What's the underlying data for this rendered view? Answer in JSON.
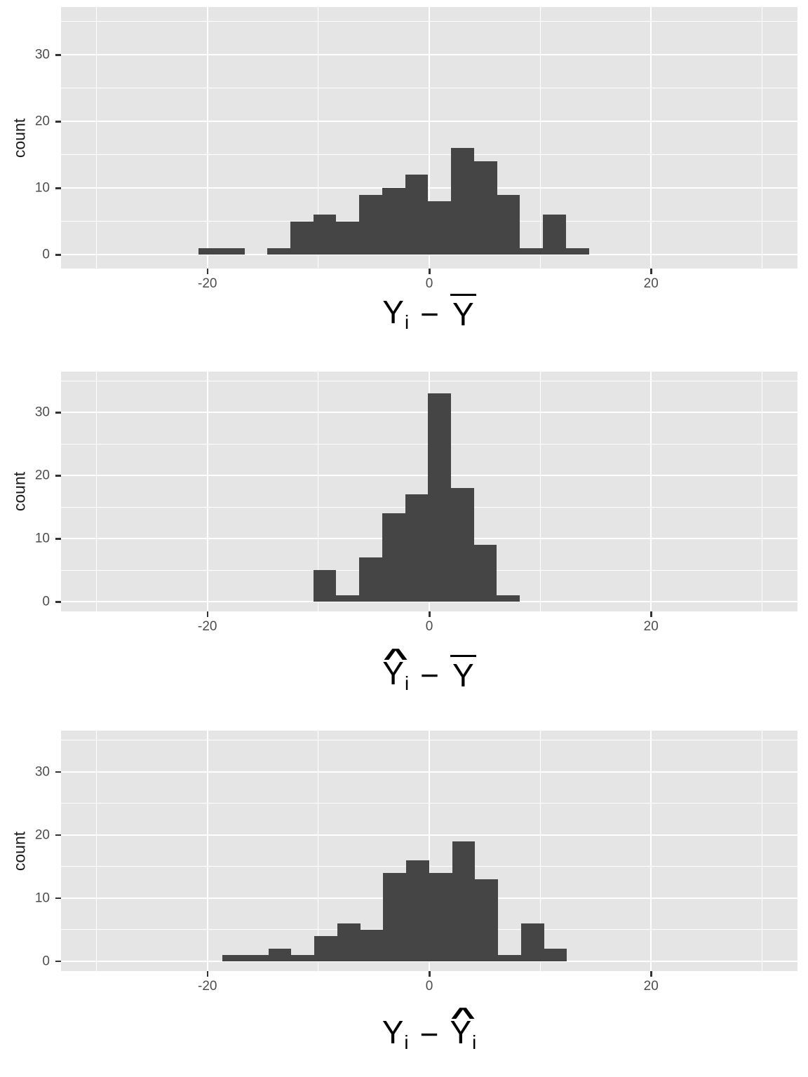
{
  "colors": {
    "bar_fill": "#454545",
    "panel_bg": "#E5E5E5",
    "grid": "#FFFFFF",
    "tick_mark": "#333333",
    "tick_label": "#4D4D4D",
    "axis_title": "#1A1A1A",
    "x_title": "#000000"
  },
  "chart_data": [
    {
      "type": "bar",
      "subtype": "histogram",
      "title": "",
      "ylabel": "count",
      "xlabel": "Y_i - Ybar",
      "xlabel_parts": [
        {
          "t": "var",
          "base": "Y",
          "sub": "i",
          "accent": ""
        },
        {
          "t": "op",
          "text": "−"
        },
        {
          "t": "var",
          "base": "Y",
          "sub": "",
          "accent": "bar"
        }
      ],
      "hat_char": "^",
      "bin_start": -20.8,
      "bin_width": 2.07,
      "counts": [
        1,
        1,
        0,
        1,
        5,
        6,
        5,
        9,
        10,
        12,
        8,
        16,
        14,
        9,
        1,
        6,
        1
      ],
      "x_ticks": [
        {
          "value": -20,
          "label": "-20"
        },
        {
          "value": 0,
          "label": "0"
        },
        {
          "value": 20,
          "label": "20"
        }
      ],
      "y_ticks": [
        {
          "value": 0,
          "label": "0"
        },
        {
          "value": 10,
          "label": "10"
        },
        {
          "value": 20,
          "label": "20"
        },
        {
          "value": 30,
          "label": "30"
        }
      ],
      "x_minor": [
        -30,
        -10,
        10,
        30
      ],
      "y_minor": [
        5,
        15,
        25,
        35
      ],
      "xlim": [
        -33.2,
        33.2
      ],
      "ylim": [
        -2.1,
        37.2
      ],
      "grid": "on",
      "legend": "none"
    },
    {
      "type": "bar",
      "subtype": "histogram",
      "title": "",
      "ylabel": "count",
      "xlabel": "Yhat_i - Ybar",
      "xlabel_parts": [
        {
          "t": "var",
          "base": "Y",
          "sub": "i",
          "accent": "hat"
        },
        {
          "t": "op",
          "text": "−"
        },
        {
          "t": "var",
          "base": "Y",
          "sub": "",
          "accent": "bar"
        }
      ],
      "hat_char": "^",
      "bin_start": -10.46,
      "bin_width": 2.07,
      "counts": [
        5,
        1,
        7,
        14,
        17,
        33,
        18,
        9,
        1
      ],
      "x_ticks": [
        {
          "value": -20,
          "label": "-20"
        },
        {
          "value": 0,
          "label": "0"
        },
        {
          "value": 20,
          "label": "20"
        }
      ],
      "y_ticks": [
        {
          "value": 0,
          "label": "0"
        },
        {
          "value": 10,
          "label": "10"
        },
        {
          "value": 20,
          "label": "20"
        },
        {
          "value": 30,
          "label": "30"
        }
      ],
      "x_minor": [
        -30,
        -10,
        10,
        30
      ],
      "y_minor": [
        5,
        15,
        25,
        35
      ],
      "xlim": [
        -33.2,
        33.2
      ],
      "ylim": [
        -1.55,
        36.45
      ],
      "grid": "on",
      "legend": "none"
    },
    {
      "type": "bar",
      "subtype": "histogram",
      "title": "",
      "ylabel": "count",
      "xlabel": "Y_i - Yhat_i",
      "xlabel_parts": [
        {
          "t": "var",
          "base": "Y",
          "sub": "i",
          "accent": ""
        },
        {
          "t": "op",
          "text": "−"
        },
        {
          "t": "var",
          "base": "Y",
          "sub": "i",
          "accent": "hat"
        }
      ],
      "hat_char": "^",
      "bin_start": -18.64,
      "bin_width": 2.07,
      "counts": [
        1,
        1,
        2,
        1,
        4,
        6,
        5,
        14,
        16,
        14,
        19,
        13,
        1,
        6,
        2
      ],
      "x_ticks": [
        {
          "value": -20,
          "label": "-20"
        },
        {
          "value": 0,
          "label": "0"
        },
        {
          "value": 20,
          "label": "20"
        }
      ],
      "y_ticks": [
        {
          "value": 0,
          "label": "0"
        },
        {
          "value": 10,
          "label": "10"
        },
        {
          "value": 20,
          "label": "20"
        },
        {
          "value": 30,
          "label": "30"
        }
      ],
      "x_minor": [
        -30,
        -10,
        10,
        30
      ],
      "y_minor": [
        5,
        15,
        25,
        35
      ],
      "xlim": [
        -33.2,
        33.2
      ],
      "ylim": [
        -1.6,
        36.5
      ],
      "grid": "on",
      "legend": "none"
    }
  ]
}
